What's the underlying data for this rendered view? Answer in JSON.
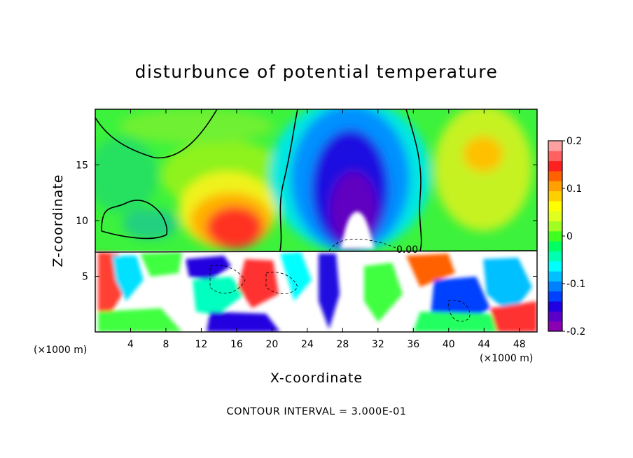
{
  "chart_data": {
    "type": "heatmap",
    "title": "disturbunce of potential temperature",
    "xlabel": "X-coordinate",
    "ylabel": "Z-coordinate",
    "x_unit": "(×1000 m)",
    "x_ticks": [
      4,
      8,
      12,
      16,
      20,
      24,
      28,
      32,
      36,
      40,
      44,
      48
    ],
    "y_ticks": [
      5,
      10,
      15
    ],
    "xlim": [
      0,
      50
    ],
    "ylim": [
      0,
      20
    ],
    "colorbar": {
      "ticks": [
        "0.2",
        "0.1",
        "0",
        "-0.1",
        "-0.2"
      ],
      "tick_values": [
        0.2,
        0.1,
        0,
        -0.1,
        -0.2
      ],
      "range": [
        -0.2,
        0.2
      ],
      "colors": [
        "#8c00b4",
        "#5a00c8",
        "#2000e0",
        "#0040ff",
        "#0080ff",
        "#00c0ff",
        "#00ffff",
        "#00ffb0",
        "#00ff60",
        "#40ff20",
        "#a0ff20",
        "#e0ff20",
        "#ffff00",
        "#ffd000",
        "#ffa000",
        "#ff6000",
        "#ff2020",
        "#ff6060",
        "#ffa0a0"
      ]
    },
    "contour_label": "0.00",
    "footer": "CONTOUR INTERVAL = 3.000E-01"
  }
}
